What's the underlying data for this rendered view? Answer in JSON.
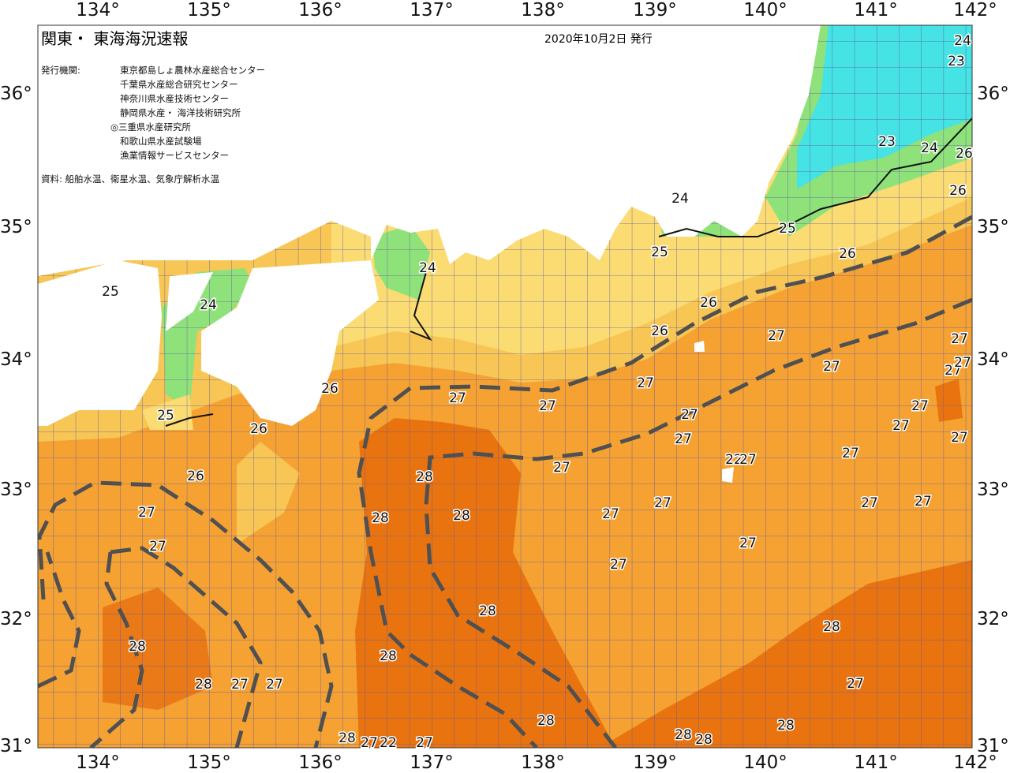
{
  "header": {
    "title": "関東・ 東海海況速報",
    "issued": "2020年10月2日 発行"
  },
  "publishers": {
    "label": "発行機関:",
    "items": [
      "東京都島しょ農林水産総合センター",
      "千葉県水産総合研究センター",
      "神奈川県水産技術センター",
      "静岡県水産・ 海洋技術研究所",
      "◎三重県水産研究所",
      "和歌山県水産試験場",
      "漁業情報サービスセンター"
    ]
  },
  "source": "資料: 船舶水温、衛星水温、気象庁解析水温",
  "axes": {
    "longitude_labels": [
      "134°",
      "135°",
      "136°",
      "137°",
      "138°",
      "139°",
      "140°",
      "141°",
      "142°"
    ],
    "latitude_labels": [
      "36°",
      "35°",
      "34°",
      "33°",
      "32°",
      "31°"
    ]
  },
  "contour_labels": [
    24,
    23,
    23,
    24,
    26,
    26,
    24,
    25,
    25,
    26,
    24,
    25,
    24,
    26,
    26,
    27,
    27,
    27,
    27,
    27,
    26,
    27,
    27,
    27,
    25,
    27,
    27,
    26,
    27,
    27,
    22,
    27,
    27,
    26,
    28,
    27,
    27,
    27,
    27,
    27,
    28,
    28,
    27,
    27,
    27,
    27,
    28,
    28,
    28,
    28,
    28,
    27,
    27,
    27,
    28,
    28,
    28,
    28,
    28,
    27,
    22,
    27,
    27
  ]
}
